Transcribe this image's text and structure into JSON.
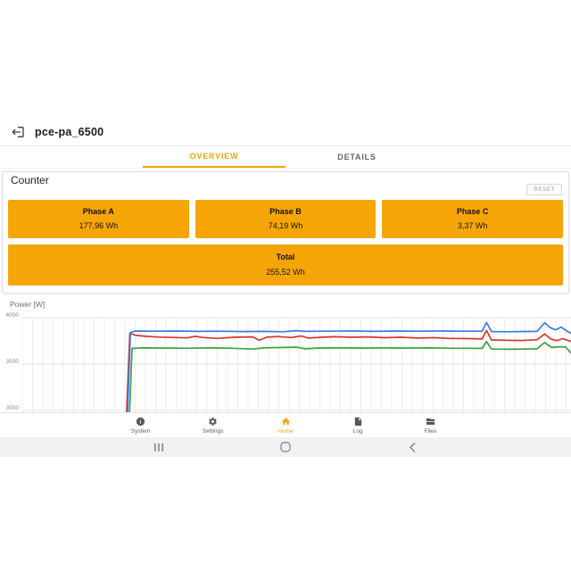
{
  "accent_color": "#f5a506",
  "header": {
    "title": "pce-pa_6500"
  },
  "tabs": [
    {
      "label": "OVERVIEW",
      "active": true
    },
    {
      "label": "DETAILS",
      "active": false
    }
  ],
  "counter": {
    "title": "Counter",
    "reset_label": "RESET",
    "phases": [
      {
        "label": "Phase A",
        "value": "177,96 Wh"
      },
      {
        "label": "Phase B",
        "value": "74,19 Wh"
      },
      {
        "label": "Phase C",
        "value": "3,37 Wh"
      }
    ],
    "total": {
      "label": "Total",
      "value": "255,52 Wh"
    }
  },
  "chart_data": {
    "type": "line",
    "title": "Power [W]",
    "xlabel": "",
    "ylabel": "Power [W]",
    "ylim": [
      3000,
      4000
    ],
    "yticks": [
      4000,
      3500,
      3000
    ],
    "xticks": [],
    "grid": true,
    "legend_position": "none",
    "x_unit": "fraction of visible time window",
    "series": [
      {
        "name": "line-green",
        "color": "#3ba23b",
        "points": [
          [
            0.191,
            2300
          ],
          [
            0.2,
            3668
          ],
          [
            0.22,
            3674
          ],
          [
            0.26,
            3672
          ],
          [
            0.3,
            3670
          ],
          [
            0.34,
            3674
          ],
          [
            0.38,
            3670
          ],
          [
            0.42,
            3662
          ],
          [
            0.44,
            3674
          ],
          [
            0.47,
            3678
          ],
          [
            0.5,
            3682
          ],
          [
            0.515,
            3664
          ],
          [
            0.54,
            3672
          ],
          [
            0.58,
            3674
          ],
          [
            0.62,
            3672
          ],
          [
            0.66,
            3674
          ],
          [
            0.7,
            3672
          ],
          [
            0.74,
            3674
          ],
          [
            0.78,
            3670
          ],
          [
            0.81,
            3670
          ],
          [
            0.838,
            3668
          ],
          [
            0.846,
            3742
          ],
          [
            0.855,
            3662
          ],
          [
            0.89,
            3660
          ],
          [
            0.92,
            3662
          ],
          [
            0.938,
            3664
          ],
          [
            0.952,
            3732
          ],
          [
            0.965,
            3678
          ],
          [
            0.978,
            3686
          ],
          [
            0.99,
            3684
          ],
          [
            1.0,
            3618
          ]
        ]
      },
      {
        "name": "line-red",
        "color": "#d8372a",
        "points": [
          [
            0.186,
            2400
          ],
          [
            0.196,
            3832
          ],
          [
            0.205,
            3812
          ],
          [
            0.225,
            3798
          ],
          [
            0.25,
            3790
          ],
          [
            0.28,
            3786
          ],
          [
            0.3,
            3782
          ],
          [
            0.315,
            3798
          ],
          [
            0.33,
            3786
          ],
          [
            0.355,
            3776
          ],
          [
            0.385,
            3788
          ],
          [
            0.42,
            3792
          ],
          [
            0.432,
            3756
          ],
          [
            0.445,
            3788
          ],
          [
            0.465,
            3796
          ],
          [
            0.49,
            3786
          ],
          [
            0.508,
            3802
          ],
          [
            0.522,
            3780
          ],
          [
            0.545,
            3788
          ],
          [
            0.57,
            3794
          ],
          [
            0.6,
            3788
          ],
          [
            0.63,
            3792
          ],
          [
            0.66,
            3784
          ],
          [
            0.69,
            3788
          ],
          [
            0.72,
            3780
          ],
          [
            0.75,
            3784
          ],
          [
            0.78,
            3776
          ],
          [
            0.81,
            3774
          ],
          [
            0.838,
            3770
          ],
          [
            0.846,
            3862
          ],
          [
            0.855,
            3760
          ],
          [
            0.88,
            3756
          ],
          [
            0.91,
            3754
          ],
          [
            0.938,
            3762
          ],
          [
            0.952,
            3824
          ],
          [
            0.963,
            3770
          ],
          [
            0.974,
            3752
          ],
          [
            0.985,
            3774
          ],
          [
            1.0,
            3742
          ]
        ]
      },
      {
        "name": "line-blue",
        "color": "#3e79e6",
        "points": [
          [
            0.19,
            2650
          ],
          [
            0.197,
            3840
          ],
          [
            0.206,
            3856
          ],
          [
            0.24,
            3854
          ],
          [
            0.28,
            3856
          ],
          [
            0.32,
            3852
          ],
          [
            0.36,
            3854
          ],
          [
            0.4,
            3850
          ],
          [
            0.44,
            3852
          ],
          [
            0.475,
            3848
          ],
          [
            0.5,
            3860
          ],
          [
            0.515,
            3852
          ],
          [
            0.55,
            3854
          ],
          [
            0.6,
            3856
          ],
          [
            0.64,
            3852
          ],
          [
            0.68,
            3856
          ],
          [
            0.72,
            3854
          ],
          [
            0.76,
            3856
          ],
          [
            0.8,
            3854
          ],
          [
            0.838,
            3854
          ],
          [
            0.846,
            3948
          ],
          [
            0.855,
            3850
          ],
          [
            0.88,
            3848
          ],
          [
            0.91,
            3850
          ],
          [
            0.938,
            3852
          ],
          [
            0.952,
            3944
          ],
          [
            0.962,
            3892
          ],
          [
            0.972,
            3868
          ],
          [
            0.982,
            3898
          ],
          [
            0.992,
            3856
          ],
          [
            1.0,
            3832
          ]
        ]
      }
    ]
  },
  "bottom_nav": {
    "items": [
      {
        "label": "System",
        "icon": "info-icon",
        "active": false
      },
      {
        "label": "Settings",
        "icon": "settings-icon",
        "active": false
      },
      {
        "label": "Home",
        "icon": "home-icon",
        "active": true
      },
      {
        "label": "Log",
        "icon": "log-icon",
        "active": false
      },
      {
        "label": "Files",
        "icon": "files-icon",
        "active": false
      }
    ]
  },
  "android_nav": {
    "buttons": [
      "recents",
      "home",
      "back"
    ]
  }
}
